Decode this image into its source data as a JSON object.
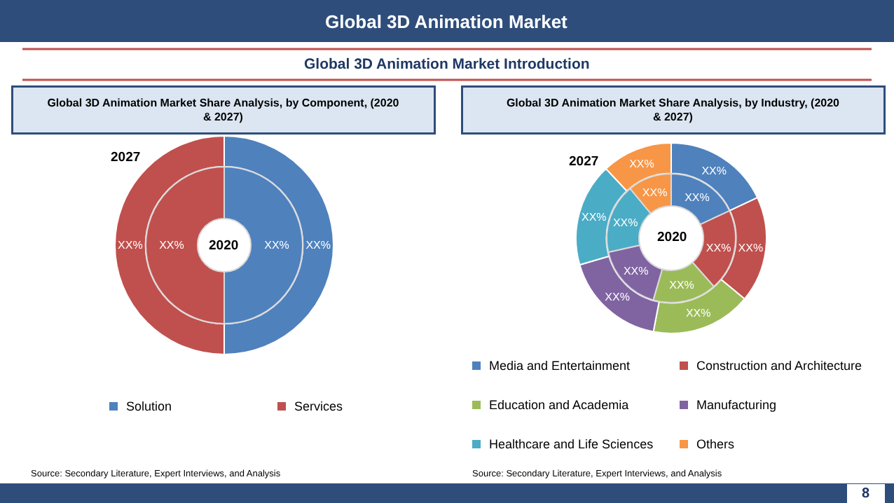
{
  "chart_data": [
    {
      "type": "other",
      "title": "Global 3D Animation Market",
      "subtitle": "Global 3D Animation Market Introduction",
      "annotations": [
        "8"
      ]
    },
    {
      "type": "donut",
      "title": "Global 3D Animation Market Share Analysis, by Component, (2020 & 2027)",
      "categories": [
        "Solution",
        "Services"
      ],
      "colors": [
        "#4f81bd",
        "#c0504d"
      ],
      "legend": "bottom",
      "series": [
        {
          "name": "2027",
          "values": [
            50,
            50
          ],
          "value_labels": [
            "XX%",
            "XX%"
          ]
        },
        {
          "name": "2020",
          "values": [
            50,
            50
          ],
          "value_labels": [
            "XX%",
            "XX%"
          ]
        }
      ],
      "annotations": [
        "Source: Secondary Literature, Expert Interviews, and Analysis"
      ]
    },
    {
      "type": "donut",
      "title": "Global 3D Animation Market Share Analysis, by Industry, (2020 & 2027)",
      "categories": [
        "Media and Entertainment",
        "Construction and Architecture",
        "Education and Academia",
        "Manufacturing",
        "Healthcare and Life Sciences",
        "Others"
      ],
      "colors": [
        "#4f81bd",
        "#c0504d",
        "#9bbb59",
        "#8064a2",
        "#4bacc6",
        "#f79646"
      ],
      "legend": "bottom",
      "series": [
        {
          "name": "2027",
          "values": [
            18,
            18,
            17,
            17.5,
            17.5,
            12
          ],
          "value_labels": [
            "XX%",
            "XX%",
            "XX%",
            "XX%",
            "XX%",
            "XX%"
          ]
        },
        {
          "name": "2020",
          "values": [
            18,
            20.5,
            16,
            17,
            17.5,
            11
          ],
          "value_labels": [
            "XX%",
            "XX%",
            "XX%",
            "XX%",
            "XX%",
            "XX%"
          ]
        }
      ],
      "annotations": [
        "Source: Secondary Literature, Expert Interviews, and Analysis"
      ]
    }
  ]
}
